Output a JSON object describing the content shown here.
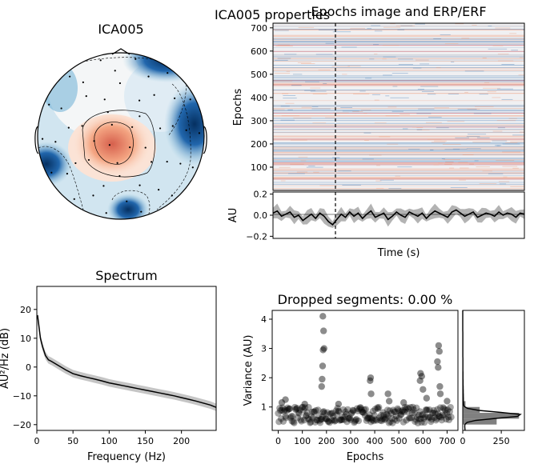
{
  "figure": {
    "suptitle": "ICA005 properties"
  },
  "chart_data": [
    {
      "id": "topomap",
      "type": "heatmap",
      "title": "ICA005",
      "colormap": [
        "#08306b",
        "#2166ac",
        "#f7f7f7",
        "#ef8a62",
        "#b2182b"
      ]
    },
    {
      "id": "epochs-image",
      "type": "heatmap",
      "title": "Epochs image and ERP/ERF",
      "ylabel": "Epochs",
      "ylim": [
        0,
        720
      ],
      "yticks": [
        100,
        200,
        300,
        400,
        500,
        600,
        700
      ],
      "event_marker": "dashed vertical line at event onset"
    },
    {
      "id": "erp",
      "type": "line",
      "ylabel": "AU",
      "xlabel": "Time (s)",
      "ylim": [
        -0.22,
        0.22
      ],
      "yticks": [
        -0.2,
        0.0,
        0.2
      ],
      "ytick_labels": [
        "−0.2",
        "0.0",
        "0.2"
      ],
      "series": [
        {
          "values": [
            0.02,
            0.04,
            -0.01,
            0.01,
            0.03,
            -0.02,
            0.0,
            -0.05,
            -0.02,
            0.01,
            -0.03,
            0.02,
            -0.01,
            -0.06,
            -0.09,
            -0.04,
            0.01,
            -0.02,
            0.03,
            -0.01,
            0.02,
            -0.03,
            0.01,
            0.04,
            -0.02,
            0.0,
            0.02,
            -0.04,
            -0.01,
            0.03,
            0.0,
            -0.02,
            0.03,
            0.01,
            -0.01,
            0.02,
            -0.03,
            0.01,
            0.04,
            0.02,
            0.0,
            -0.02,
            0.03,
            0.05,
            0.02,
            -0.01,
            0.01,
            0.03,
            -0.02,
            0.0,
            0.02,
            0.01,
            -0.01,
            0.03,
            0.0,
            0.02,
            0.01,
            -0.02,
            0.02,
            0.01
          ]
        }
      ]
    },
    {
      "id": "spectrum",
      "type": "line",
      "title": "Spectrum",
      "xlabel": "Frequency (Hz)",
      "ylabel": "AU²/Hz (dB)",
      "xlim": [
        0,
        248
      ],
      "ylim": [
        -22,
        28
      ],
      "xticks": [
        0,
        50,
        100,
        150,
        200
      ],
      "yticks": [
        -20,
        -10,
        0,
        10,
        20
      ],
      "ytick_labels": [
        "−20",
        "−10",
        "0",
        "10",
        "20"
      ],
      "x": [
        1,
        3,
        5,
        8,
        12,
        16,
        20,
        30,
        40,
        50,
        60,
        70,
        80,
        90,
        100,
        110,
        120,
        130,
        140,
        150,
        160,
        170,
        180,
        190,
        200,
        210,
        220,
        230,
        240,
        248
      ],
      "values": [
        18,
        14,
        10,
        7,
        4,
        2.5,
        2,
        0.5,
        -1,
        -2.3,
        -3,
        -3.6,
        -4.2,
        -4.8,
        -5.5,
        -6,
        -6.5,
        -7,
        -7.5,
        -8,
        -8.5,
        -9,
        -9.5,
        -10,
        -10.6,
        -11.2,
        -11.8,
        -12.5,
        -13.2,
        -14
      ]
    },
    {
      "id": "dropped",
      "type": "scatter",
      "title": "Dropped segments: 0.00 %",
      "xlabel": "Epochs",
      "ylabel": "Variance (AU)",
      "xlim": [
        -25,
        745
      ],
      "ylim": [
        0.2,
        4.3
      ],
      "xticks": [
        0,
        100,
        200,
        300,
        400,
        500,
        600,
        700
      ],
      "yticks": [
        1,
        2,
        3,
        4
      ],
      "outliers": [
        [
          185,
          4.1
        ],
        [
          188,
          3.6
        ],
        [
          190,
          3.0
        ],
        [
          186,
          2.95
        ],
        [
          184,
          2.4
        ],
        [
          182,
          1.95
        ],
        [
          180,
          1.7
        ],
        [
          383,
          2.0
        ],
        [
          381,
          1.9
        ],
        [
          385,
          1.45
        ],
        [
          590,
          2.15
        ],
        [
          595,
          2.05
        ],
        [
          588,
          1.9
        ],
        [
          600,
          1.6
        ],
        [
          665,
          3.1
        ],
        [
          668,
          2.9
        ],
        [
          660,
          2.55
        ],
        [
          663,
          2.35
        ],
        [
          670,
          1.7
        ],
        [
          672,
          1.45
        ],
        [
          455,
          1.45
        ],
        [
          460,
          1.2
        ],
        [
          30,
          1.25
        ],
        [
          110,
          1.1
        ],
        [
          250,
          1.1
        ],
        [
          520,
          1.15
        ],
        [
          700,
          1.2
        ],
        [
          15,
          1.15
        ],
        [
          615,
          1.3
        ]
      ],
      "hist": {
        "xlim": [
          0,
          400
        ],
        "xticks": [
          0,
          250
        ],
        "bins": [
          {
            "y0": 0.4,
            "y1": 0.6,
            "count": 220
          },
          {
            "y0": 0.6,
            "y1": 0.8,
            "count": 365
          },
          {
            "y0": 0.8,
            "y1": 1.0,
            "count": 110
          },
          {
            "y0": 1.0,
            "y1": 1.2,
            "count": 18
          },
          {
            "y0": 1.2,
            "y1": 1.4,
            "count": 6
          }
        ]
      }
    }
  ]
}
